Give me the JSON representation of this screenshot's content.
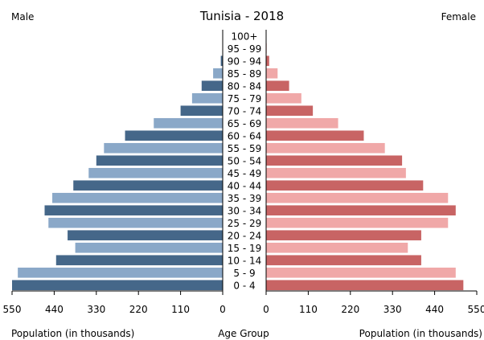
{
  "chart_data": {
    "type": "bar",
    "title": "Tunisia - 2018",
    "left_header": "Male",
    "right_header": "Female",
    "categories": [
      "100+",
      "95 - 99",
      "90 - 94",
      "85 - 89",
      "80 - 84",
      "75 - 79",
      "70 - 74",
      "65 - 69",
      "60 - 64",
      "55 - 59",
      "50 - 54",
      "45 - 49",
      "40 - 44",
      "35 - 39",
      "30 - 34",
      "25 - 29",
      "20 - 24",
      "15 - 19",
      "10 - 14",
      "5 - 9",
      "0 - 4"
    ],
    "series": [
      {
        "name": "Male",
        "values": [
          0.5,
          1,
          5,
          25,
          55,
          80,
          110,
          180,
          255,
          310,
          330,
          350,
          390,
          445,
          465,
          455,
          405,
          385,
          435,
          535,
          550
        ]
      },
      {
        "name": "Female",
        "values": [
          0.5,
          1.5,
          8,
          30,
          60,
          92,
          122,
          188,
          255,
          310,
          355,
          365,
          410,
          475,
          495,
          475,
          405,
          370,
          405,
          495,
          515
        ]
      }
    ],
    "xticks": [
      "550",
      "440",
      "330",
      "220",
      "110",
      "0",
      "0",
      "110",
      "220",
      "330",
      "440",
      "550"
    ],
    "xlim": [
      0,
      550
    ],
    "xlabel_left": "Population (in thousands)",
    "xlabel_center": "Age Group",
    "xlabel_right": "Population (in thousands)",
    "colors": {
      "male_dark": "#456789",
      "male_light": "#8aa8c8",
      "female_dark": "#c86464",
      "female_light": "#f0a8a8",
      "axis": "#000000"
    }
  }
}
